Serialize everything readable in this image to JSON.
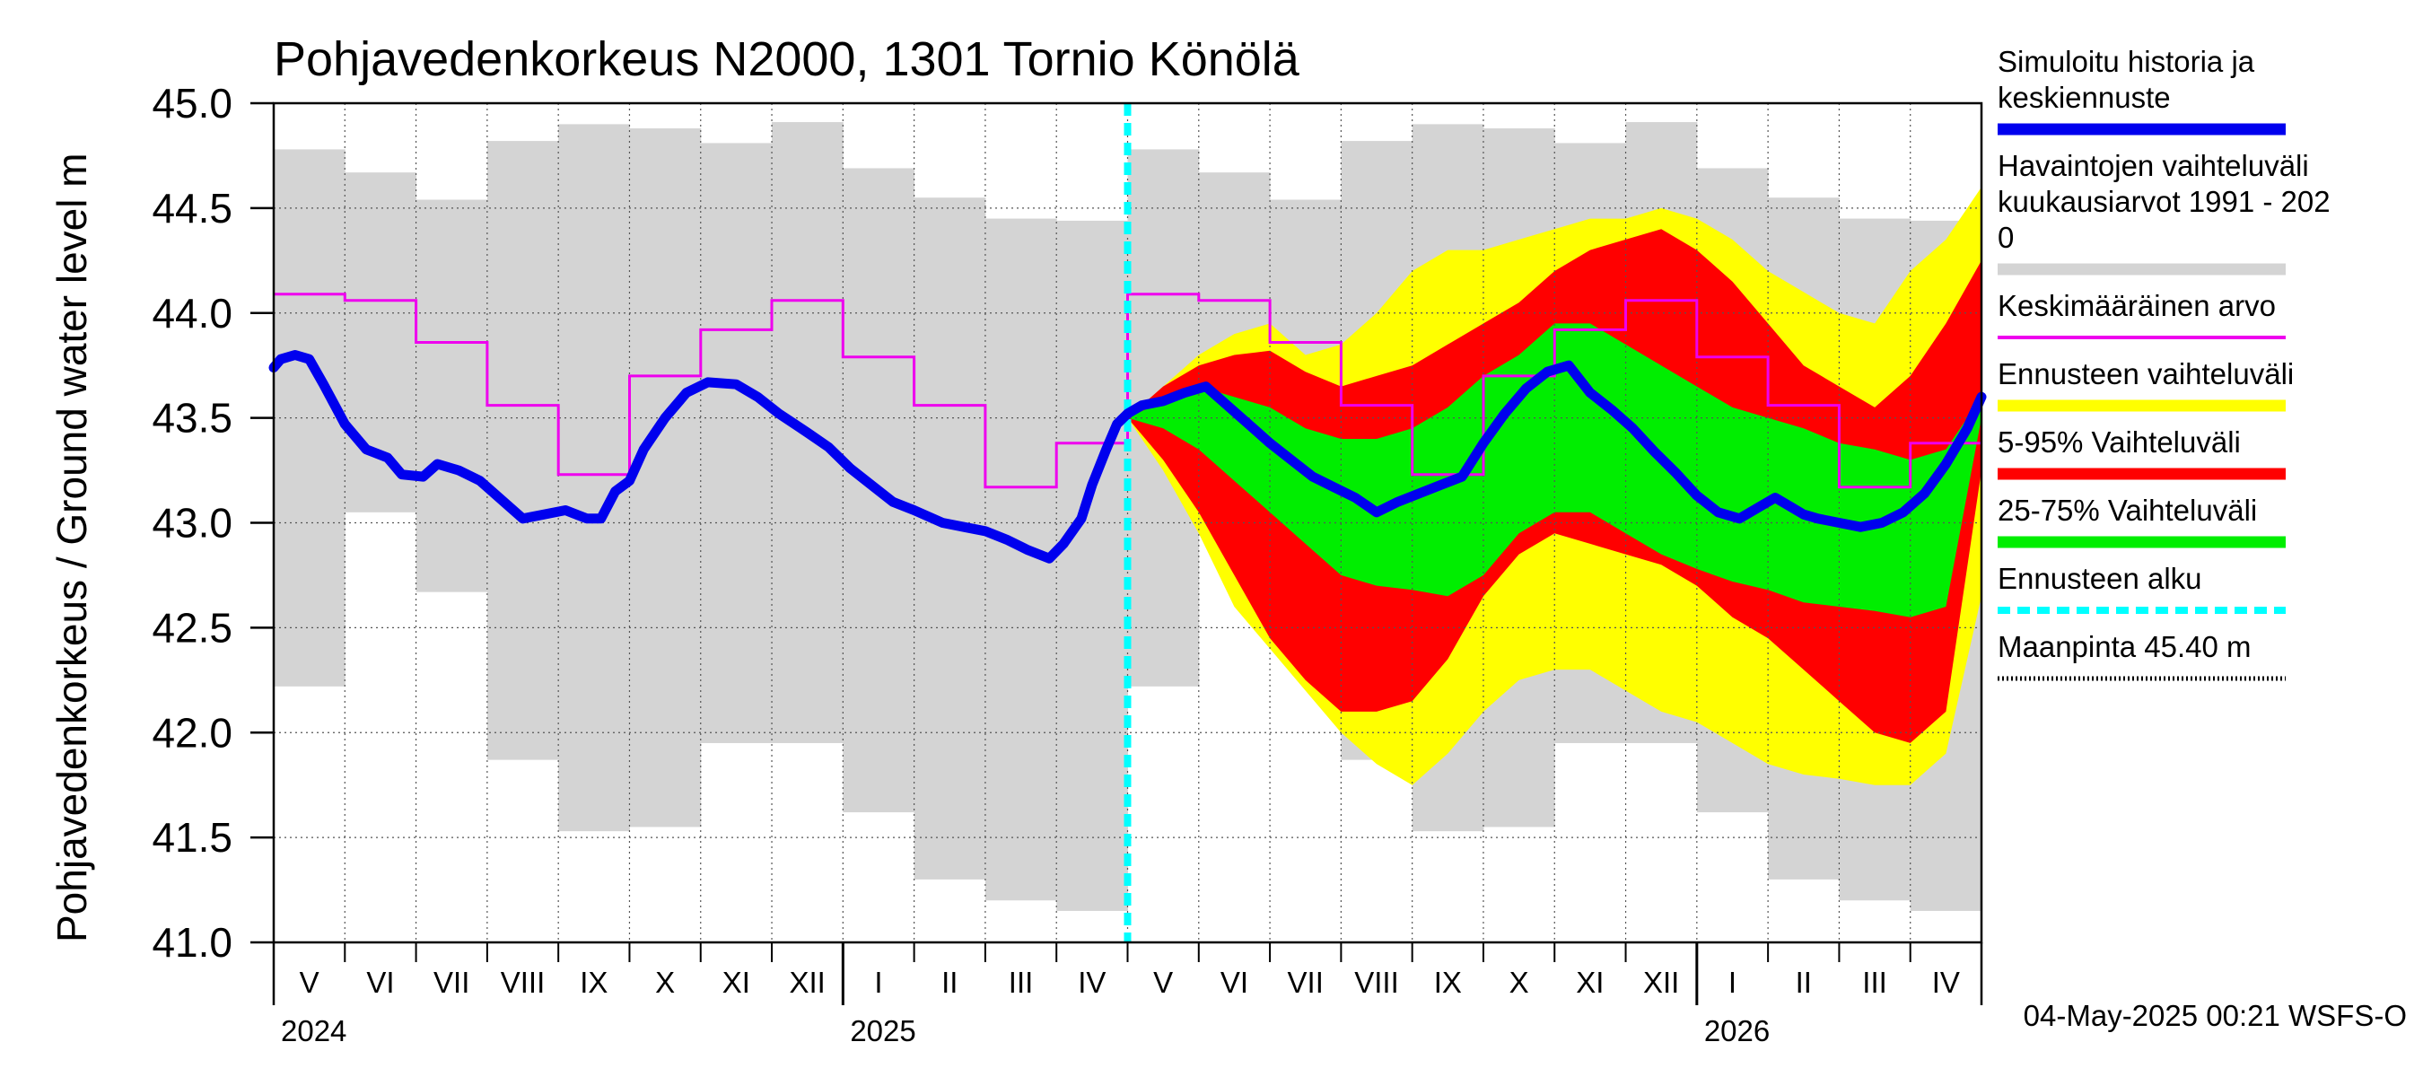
{
  "chart_data": {
    "type": "line",
    "title": "Pohjavedenkorkeus N2000, 1301 Tornio Könölä",
    "ylabel": "Pohjavedenkorkeus / Ground water level   m",
    "ylim": [
      41.0,
      45.0
    ],
    "yticks": [
      "41.0",
      "41.5",
      "42.0",
      "42.5",
      "43.0",
      "43.5",
      "44.0",
      "44.5",
      "45.0"
    ],
    "grid": true,
    "months": [
      "V",
      "VI",
      "VII",
      "VIII",
      "IX",
      "X",
      "XI",
      "XII",
      "I",
      "II",
      "III",
      "IV",
      "V",
      "VI",
      "VII",
      "VIII",
      "IX",
      "X",
      "XI",
      "XII",
      "I",
      "II",
      "III",
      "IV"
    ],
    "years": [
      {
        "label": "2024",
        "month_index": 0
      },
      {
        "label": "2025",
        "month_index": 8
      },
      {
        "label": "2026",
        "month_index": 20
      }
    ],
    "forecast_start_month": 12,
    "timestamp": "04-May-2025 00:21 WSFS-O",
    "legend": [
      {
        "label": "Simuloitu historia ja keskiennuste",
        "color": "#0000ee",
        "style": "solid-thick"
      },
      {
        "label": "Havaintojen vaihteluväli kuukausiarvot 1991 - 2020",
        "color": "#d4d4d4",
        "style": "solid-thick"
      },
      {
        "label": "Keskimääräinen arvo",
        "color": "#ee00ee",
        "style": "solid"
      },
      {
        "label": "Ennusteen vaihteluväli",
        "color": "#ffff00",
        "style": "solid-thick"
      },
      {
        "label": "5-95% Vaihteluväli",
        "color": "#ff0000",
        "style": "solid-thick"
      },
      {
        "label": "25-75% Vaihteluväli",
        "color": "#00ee00",
        "style": "solid-thick"
      },
      {
        "label": "Ennusteen alku",
        "color": "#00ffff",
        "style": "dashed"
      },
      {
        "label": "Maanpinta 45.40 m",
        "color": "#000000",
        "style": "dotted"
      }
    ],
    "legend_lines": [
      [
        "Simuloitu historia ja",
        "keskiennuste"
      ],
      [
        "Havaintojen vaihteluväli",
        " kuukausiarvot 1991 - 202",
        "0"
      ],
      [
        "Keskimääräinen arvo"
      ],
      [
        "Ennusteen vaihteluväli"
      ],
      [
        "5-95% Vaihteluväli"
      ],
      [
        "25-75% Vaihteluväli"
      ],
      [
        "Ennusteen alku"
      ],
      [
        "Maanpinta 45.40 m"
      ]
    ],
    "observed_range_monthly": {
      "max": [
        44.78,
        44.67,
        44.54,
        44.82,
        44.9,
        44.88,
        44.81,
        44.91,
        44.69,
        44.55,
        44.45,
        44.44,
        44.78,
        44.67,
        44.54,
        44.82,
        44.9,
        44.88,
        44.81,
        44.91,
        44.69,
        44.55,
        44.45,
        44.44
      ],
      "min": [
        42.22,
        43.05,
        42.67,
        41.87,
        41.53,
        41.55,
        41.95,
        41.95,
        41.62,
        41.3,
        41.2,
        41.15,
        42.22,
        43.05,
        42.67,
        41.87,
        41.53,
        41.55,
        41.95,
        41.95,
        41.62,
        41.3,
        41.2,
        41.15
      ]
    },
    "mean_monthly": [
      44.09,
      44.06,
      43.86,
      43.56,
      43.23,
      43.7,
      43.92,
      44.06,
      43.79,
      43.56,
      43.17,
      43.38,
      44.09,
      44.06,
      43.86,
      43.56,
      43.23,
      43.7,
      43.92,
      44.06,
      43.79,
      43.56,
      43.17,
      43.38
    ],
    "simulated": {
      "x": [
        0,
        0.1,
        0.3,
        0.5,
        0.7,
        1.0,
        1.3,
        1.6,
        1.8,
        2.1,
        2.3,
        2.6,
        2.9,
        3.2,
        3.5,
        3.8,
        4.1,
        4.4,
        4.6,
        4.8,
        5.0,
        5.2,
        5.5,
        5.8,
        6.1,
        6.5,
        6.8,
        7.1,
        7.5,
        7.8,
        8.1,
        8.4,
        8.7,
        9.0,
        9.4,
        9.7,
        10.0,
        10.3,
        10.6,
        10.9,
        11.1,
        11.35,
        11.5,
        11.7,
        11.85,
        12.0,
        12.2,
        12.5,
        12.8,
        13.1,
        13.4,
        13.7,
        14.0,
        14.3,
        14.6,
        14.9,
        15.2,
        15.5,
        15.8,
        16.1,
        16.4,
        16.7,
        17.0,
        17.3,
        17.6,
        17.9,
        18.2,
        18.5,
        18.8,
        19.1,
        19.4,
        19.7,
        20.0,
        20.3,
        20.6,
        20.9,
        21.1,
        21.3,
        21.5,
        21.7,
        22.0,
        22.3,
        22.6,
        22.9,
        23.2,
        23.5,
        23.8,
        24.0
      ],
      "y": [
        43.74,
        43.78,
        43.8,
        43.78,
        43.66,
        43.47,
        43.35,
        43.31,
        43.23,
        43.22,
        43.28,
        43.25,
        43.2,
        43.11,
        43.02,
        43.04,
        43.06,
        43.02,
        43.02,
        43.15,
        43.2,
        43.35,
        43.5,
        43.62,
        43.67,
        43.66,
        43.6,
        43.52,
        43.43,
        43.36,
        43.26,
        43.18,
        43.1,
        43.06,
        43.0,
        42.98,
        42.96,
        42.92,
        42.87,
        42.83,
        42.9,
        43.02,
        43.18,
        43.35,
        43.47,
        43.52,
        43.56,
        43.58,
        43.62,
        43.65,
        43.56,
        43.47,
        43.38,
        43.3,
        43.22,
        43.17,
        43.12,
        43.05,
        43.1,
        43.14,
        43.18,
        43.22,
        43.38,
        43.52,
        43.64,
        43.72,
        43.75,
        43.62,
        43.54,
        43.45,
        43.34,
        43.24,
        43.13,
        43.05,
        43.02,
        43.08,
        43.12,
        43.08,
        43.04,
        43.02,
        43.0,
        42.98,
        43.0,
        43.05,
        43.14,
        43.28,
        43.45,
        43.6
      ]
    },
    "forecast_bands": {
      "x": [
        12.0,
        12.5,
        13.0,
        13.5,
        14.0,
        14.5,
        15.0,
        15.5,
        16.0,
        16.5,
        17.0,
        17.5,
        18.0,
        18.5,
        19.0,
        19.5,
        20.0,
        20.5,
        21.0,
        21.5,
        22.0,
        22.5,
        23.0,
        23.5,
        24.0
      ],
      "yellow_upper": [
        43.5,
        43.65,
        43.8,
        43.9,
        43.95,
        43.8,
        43.85,
        44.0,
        44.2,
        44.3,
        44.3,
        44.35,
        44.4,
        44.45,
        44.45,
        44.5,
        44.45,
        44.35,
        44.2,
        44.1,
        44.0,
        43.95,
        44.2,
        44.35,
        44.6
      ],
      "red_upper": [
        43.5,
        43.65,
        43.75,
        43.8,
        43.82,
        43.72,
        43.65,
        43.7,
        43.75,
        43.85,
        43.95,
        44.05,
        44.2,
        44.3,
        44.35,
        44.4,
        44.3,
        44.15,
        43.95,
        43.75,
        43.65,
        43.55,
        43.7,
        43.95,
        44.25
      ],
      "green_upper": [
        43.5,
        43.58,
        43.65,
        43.6,
        43.55,
        43.45,
        43.4,
        43.4,
        43.45,
        43.55,
        43.7,
        43.8,
        43.95,
        43.95,
        43.85,
        43.75,
        43.65,
        43.55,
        43.5,
        43.45,
        43.38,
        43.35,
        43.3,
        43.35,
        43.6
      ],
      "green_lower": [
        43.5,
        43.45,
        43.35,
        43.2,
        43.05,
        42.9,
        42.75,
        42.7,
        42.68,
        42.65,
        42.75,
        42.95,
        43.05,
        43.05,
        42.95,
        42.85,
        42.78,
        42.72,
        42.68,
        42.62,
        42.6,
        42.58,
        42.55,
        42.6,
        43.5
      ],
      "red_lower": [
        43.5,
        43.3,
        43.05,
        42.75,
        42.45,
        42.25,
        42.1,
        42.1,
        42.15,
        42.35,
        42.65,
        42.85,
        42.95,
        42.9,
        42.85,
        42.8,
        42.7,
        42.55,
        42.45,
        42.3,
        42.15,
        42.0,
        41.95,
        42.1,
        43.25
      ],
      "yellow_lower": [
        43.5,
        43.25,
        42.95,
        42.6,
        42.4,
        42.2,
        42.0,
        41.85,
        41.75,
        41.9,
        42.1,
        42.25,
        42.3,
        42.3,
        42.2,
        42.1,
        42.05,
        41.95,
        41.85,
        41.8,
        41.78,
        41.75,
        41.75,
        41.9,
        42.65
      ]
    }
  }
}
